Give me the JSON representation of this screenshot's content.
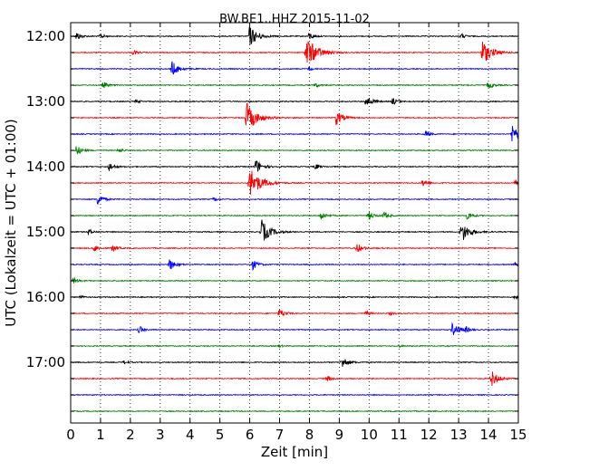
{
  "chart_data": {
    "type": "line",
    "title": "BW.BE1..HHZ 2015-11-02",
    "xlabel": "Zeit  [min]",
    "ylabel": "UTC (Lokalzeit = UTC + 01:00)",
    "xlim": [
      0,
      15
    ],
    "x_ticks": [
      "0",
      "1",
      "2",
      "3",
      "4",
      "5",
      "6",
      "7",
      "8",
      "9",
      "10",
      "11",
      "12",
      "13",
      "14",
      "15"
    ],
    "y_ticks": [
      "12:00",
      "13:00",
      "14:00",
      "15:00",
      "16:00",
      "17:00"
    ],
    "grid": "vertical dotted",
    "trace_interval_minutes": 15,
    "trace_colors": [
      "#000000",
      "#ff0000",
      "#0000ff",
      "#008000"
    ],
    "traces": [
      {
        "start": "12:00",
        "events": [
          {
            "t": 0.2,
            "a": 0.35
          },
          {
            "t": 1.0,
            "a": 0.2
          },
          {
            "t": 6.0,
            "a": 0.85
          },
          {
            "t": 8.0,
            "a": 0.3
          },
          {
            "t": 13.1,
            "a": 0.2
          }
        ]
      },
      {
        "start": "12:15",
        "events": [
          {
            "t": 7.9,
            "a": 1.3
          },
          {
            "t": 2.1,
            "a": 0.2
          },
          {
            "t": 13.8,
            "a": 1.0
          }
        ]
      },
      {
        "start": "12:30",
        "events": [
          {
            "t": 3.4,
            "a": 0.6
          },
          {
            "t": 8.0,
            "a": 0.15
          }
        ]
      },
      {
        "start": "12:45",
        "events": [
          {
            "t": 1.1,
            "a": 0.25
          },
          {
            "t": 8.2,
            "a": 0.2
          },
          {
            "t": 14.0,
            "a": 0.3
          }
        ]
      },
      {
        "start": "13:00",
        "events": [
          {
            "t": 2.2,
            "a": 0.15
          },
          {
            "t": 9.9,
            "a": 0.5
          },
          {
            "t": 10.8,
            "a": 0.3
          }
        ]
      },
      {
        "start": "13:15",
        "events": [
          {
            "t": 5.9,
            "a": 1.2
          },
          {
            "t": 8.9,
            "a": 0.6
          }
        ]
      },
      {
        "start": "13:30",
        "events": [
          {
            "t": 11.9,
            "a": 0.25
          },
          {
            "t": 14.8,
            "a": 0.75
          }
        ]
      },
      {
        "start": "13:45",
        "events": [
          {
            "t": 0.2,
            "a": 0.4
          },
          {
            "t": 1.6,
            "a": 0.2
          }
        ]
      },
      {
        "start": "14:00",
        "events": [
          {
            "t": 1.3,
            "a": 0.35
          },
          {
            "t": 6.2,
            "a": 0.6
          },
          {
            "t": 8.2,
            "a": 0.25
          }
        ]
      },
      {
        "start": "14:15",
        "events": [
          {
            "t": 6.0,
            "a": 1.3
          },
          {
            "t": 11.8,
            "a": 0.3
          },
          {
            "t": 14.9,
            "a": 0.2
          }
        ]
      },
      {
        "start": "14:30",
        "events": [
          {
            "t": 0.9,
            "a": 0.45
          },
          {
            "t": 4.8,
            "a": 0.15
          }
        ]
      },
      {
        "start": "14:45",
        "events": [
          {
            "t": 8.4,
            "a": 0.35
          },
          {
            "t": 10.0,
            "a": 0.35
          },
          {
            "t": 10.5,
            "a": 0.3
          },
          {
            "t": 13.3,
            "a": 0.35
          }
        ]
      },
      {
        "start": "15:00",
        "events": [
          {
            "t": 0.6,
            "a": 0.25
          },
          {
            "t": 6.4,
            "a": 0.95
          },
          {
            "t": 13.1,
            "a": 0.85
          }
        ]
      },
      {
        "start": "15:15",
        "events": [
          {
            "t": 0.8,
            "a": 0.3
          },
          {
            "t": 1.4,
            "a": 0.3
          },
          {
            "t": 9.6,
            "a": 0.4
          }
        ]
      },
      {
        "start": "15:30",
        "events": [
          {
            "t": 3.3,
            "a": 0.5
          },
          {
            "t": 6.1,
            "a": 0.4
          },
          {
            "t": 14.9,
            "a": 0.15
          }
        ]
      },
      {
        "start": "15:45",
        "events": [
          {
            "t": 0.1,
            "a": 0.25
          }
        ]
      },
      {
        "start": "16:00",
        "events": [
          {
            "t": 0.3,
            "a": 0.15
          },
          {
            "t": 14.9,
            "a": 0.15
          }
        ]
      },
      {
        "start": "16:15",
        "events": [
          {
            "t": 7.0,
            "a": 0.4
          },
          {
            "t": 9.9,
            "a": 0.2
          },
          {
            "t": 10.7,
            "a": 0.15
          }
        ]
      },
      {
        "start": "16:30",
        "events": [
          {
            "t": 2.3,
            "a": 0.3
          },
          {
            "t": 12.8,
            "a": 0.6
          },
          {
            "t": 13.2,
            "a": 0.25
          }
        ]
      },
      {
        "start": "16:45",
        "events": [
          {
            "t": 7.0,
            "a": 0.1
          },
          {
            "t": 11.0,
            "a": 0.1
          }
        ]
      },
      {
        "start": "17:00",
        "events": [
          {
            "t": 1.8,
            "a": 0.15
          },
          {
            "t": 9.1,
            "a": 0.5
          }
        ]
      },
      {
        "start": "17:15",
        "events": [
          {
            "t": 8.6,
            "a": 0.25
          },
          {
            "t": 14.1,
            "a": 0.65
          }
        ]
      },
      {
        "start": "17:30",
        "events": []
      },
      {
        "start": "17:45",
        "events": []
      }
    ]
  }
}
